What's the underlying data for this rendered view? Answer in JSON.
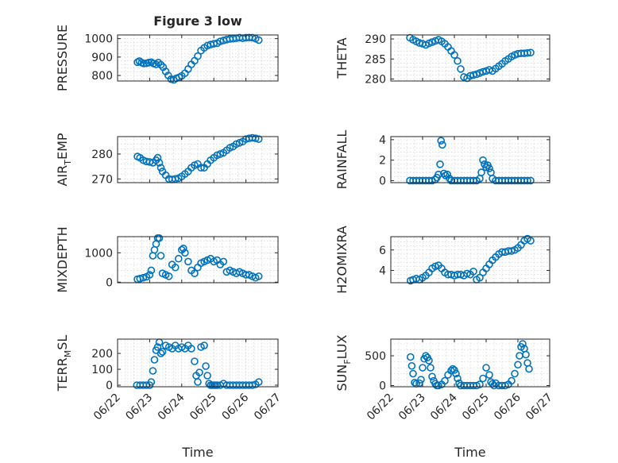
{
  "figure": {
    "title": "Figure 3 low"
  },
  "colors": {
    "marker": "#0072BD",
    "axis": "#262626",
    "grid": "#c8c8c8"
  },
  "chart_data": [
    {
      "type": "scatter",
      "id": "pressure",
      "title": "Figure 3 low",
      "ylabel": "PRESSURE",
      "ylabel_sub": "",
      "ylabel_tail": "",
      "xlim": [
        0,
        5
      ],
      "ylim": [
        770,
        1020
      ],
      "yticks": [
        800,
        900,
        1000
      ],
      "xticks": [
        0,
        1,
        2,
        3,
        4,
        5
      ],
      "xticklabels": [
        "06/22",
        "06/23",
        "06/24",
        "06/25",
        "06/26",
        "06/27"
      ],
      "show_xticklabels": false,
      "xlabel": "",
      "x": [
        0.62,
        0.68,
        0.75,
        0.82,
        0.9,
        0.97,
        1.05,
        1.12,
        1.2,
        1.27,
        1.35,
        1.42,
        1.5,
        1.58,
        1.67,
        1.75,
        1.83,
        1.92,
        2.0,
        2.1,
        2.2,
        2.3,
        2.4,
        2.5,
        2.6,
        2.7,
        2.8,
        2.9,
        3.0,
        3.1,
        3.2,
        3.3,
        3.4,
        3.5,
        3.6,
        3.7,
        3.8,
        3.9,
        4.0,
        4.1,
        4.2,
        4.3,
        4.4
      ],
      "y": [
        872,
        878,
        870,
        865,
        866,
        870,
        872,
        865,
        860,
        870,
        858,
        845,
        822,
        800,
        780,
        776,
        785,
        790,
        798,
        812,
        835,
        860,
        880,
        905,
        935,
        950,
        962,
        968,
        972,
        975,
        985,
        990,
        995,
        998,
        1000,
        1002,
        1005,
        1002,
        1005,
        1006,
        1005,
        1000,
        992
      ]
    },
    {
      "type": "scatter",
      "id": "theta",
      "title": "",
      "ylabel": "THETA",
      "ylabel_sub": "",
      "ylabel_tail": "",
      "xlim": [
        0,
        5
      ],
      "ylim": [
        279.5,
        291
      ],
      "yticks": [
        280,
        285,
        290
      ],
      "xticks": [
        0,
        1,
        2,
        3,
        4,
        5
      ],
      "xticklabels": [
        "06/22",
        "06/23",
        "06/24",
        "06/25",
        "06/26",
        "06/27"
      ],
      "show_xticklabels": false,
      "xlabel": "",
      "x": [
        0.6,
        0.7,
        0.8,
        0.9,
        1.0,
        1.1,
        1.2,
        1.3,
        1.4,
        1.5,
        1.6,
        1.7,
        1.8,
        1.9,
        2.0,
        2.1,
        2.2,
        2.3,
        2.4,
        2.5,
        2.6,
        2.7,
        2.8,
        2.9,
        3.0,
        3.1,
        3.2,
        3.3,
        3.4,
        3.5,
        3.6,
        3.7,
        3.8,
        3.9,
        4.0,
        4.1,
        4.2,
        4.3,
        4.4
      ],
      "y": [
        290.3,
        289.8,
        289.4,
        289.0,
        288.8,
        288.5,
        288.9,
        289.2,
        289.5,
        289.8,
        289.4,
        288.8,
        288.0,
        287.0,
        286.0,
        284.5,
        282.5,
        280.5,
        280.2,
        280.8,
        281.0,
        281.2,
        281.5,
        281.8,
        282.0,
        282.3,
        282.0,
        282.6,
        283.2,
        283.8,
        284.5,
        285.0,
        285.6,
        286.0,
        286.3,
        286.4,
        286.4,
        286.5,
        286.6
      ]
    },
    {
      "type": "scatter",
      "id": "airtemp",
      "title": "",
      "ylabel": "AIR",
      "ylabel_sub": "T",
      "ylabel_tail": "EMP",
      "xlim": [
        0,
        5
      ],
      "ylim": [
        268.5,
        287
      ],
      "yticks": [
        270,
        280
      ],
      "xticks": [
        0,
        1,
        2,
        3,
        4,
        5
      ],
      "xticklabels": [
        "06/22",
        "06/23",
        "06/24",
        "06/25",
        "06/26",
        "06/27"
      ],
      "show_xticklabels": false,
      "xlabel": "",
      "x": [
        0.62,
        0.7,
        0.8,
        0.9,
        1.0,
        1.1,
        1.2,
        1.25,
        1.3,
        1.35,
        1.4,
        1.5,
        1.6,
        1.7,
        1.8,
        1.9,
        2.0,
        2.1,
        2.2,
        2.3,
        2.4,
        2.5,
        2.6,
        2.7,
        2.8,
        2.9,
        3.0,
        3.1,
        3.2,
        3.3,
        3.4,
        3.5,
        3.6,
        3.7,
        3.8,
        3.9,
        4.0,
        4.1,
        4.2,
        4.3,
        4.4
      ],
      "y": [
        279,
        278.5,
        277.5,
        277,
        276.8,
        276.5,
        277.5,
        278.5,
        276.5,
        274.5,
        273,
        271.5,
        270,
        269.8,
        270,
        270.3,
        271,
        272,
        273,
        274.5,
        275.5,
        276,
        274.5,
        274.5,
        276,
        277.5,
        278.5,
        279.5,
        280,
        280.5,
        281.5,
        282.5,
        283,
        284,
        284.5,
        285,
        286,
        286.3,
        286.5,
        286.3,
        286
      ]
    },
    {
      "type": "scatter",
      "id": "rainfall",
      "title": "",
      "ylabel": "RAINFALL",
      "ylabel_sub": "",
      "ylabel_tail": "",
      "xlim": [
        0,
        5
      ],
      "ylim": [
        -0.2,
        4.3
      ],
      "yticks": [
        0,
        2,
        4
      ],
      "xticks": [
        0,
        1,
        2,
        3,
        4,
        5
      ],
      "xticklabels": [
        "06/22",
        "06/23",
        "06/24",
        "06/25",
        "06/26",
        "06/27"
      ],
      "show_xticklabels": false,
      "xlabel": "",
      "x": [
        0.6,
        0.7,
        0.8,
        0.9,
        1.0,
        1.1,
        1.2,
        1.3,
        1.4,
        1.45,
        1.5,
        1.55,
        1.58,
        1.62,
        1.67,
        1.72,
        1.78,
        1.85,
        1.9,
        2.0,
        2.1,
        2.2,
        2.3,
        2.4,
        2.5,
        2.6,
        2.7,
        2.8,
        2.85,
        2.9,
        2.95,
        3.0,
        3.05,
        3.1,
        3.15,
        3.2,
        3.3,
        3.4,
        3.5,
        3.6,
        3.7,
        3.8,
        3.9,
        4.0,
        4.1,
        4.2,
        4.3,
        4.4
      ],
      "y": [
        0,
        0,
        0,
        0,
        0,
        0,
        0,
        0,
        0.1,
        0.3,
        0.6,
        1.6,
        3.9,
        3.5,
        0.7,
        0.5,
        0.6,
        0.2,
        0,
        0,
        0,
        0,
        0,
        0,
        0,
        0,
        0,
        0.2,
        0.8,
        2.0,
        1.6,
        1.3,
        1.5,
        1.2,
        0.8,
        0.2,
        0,
        0,
        0,
        0,
        0,
        0,
        0,
        0,
        0,
        0,
        0,
        0
      ]
    },
    {
      "type": "scatter",
      "id": "mixdepth",
      "title": "",
      "ylabel": "MIXDEPTH",
      "ylabel_sub": "",
      "ylabel_tail": "",
      "xlim": [
        0,
        5
      ],
      "ylim": [
        -20,
        1550
      ],
      "yticks": [
        0,
        1000
      ],
      "xticks": [
        0,
        1,
        2,
        3,
        4,
        5
      ],
      "xticklabels": [
        "06/22",
        "06/23",
        "06/24",
        "06/25",
        "06/26",
        "06/27"
      ],
      "show_xticklabels": false,
      "xlabel": "",
      "x": [
        0.62,
        0.7,
        0.8,
        0.9,
        1.0,
        1.05,
        1.1,
        1.15,
        1.2,
        1.25,
        1.3,
        1.35,
        1.4,
        1.5,
        1.6,
        1.7,
        1.8,
        1.9,
        2.0,
        2.05,
        2.1,
        2.2,
        2.3,
        2.4,
        2.5,
        2.6,
        2.7,
        2.8,
        2.9,
        3.0,
        3.1,
        3.2,
        3.3,
        3.4,
        3.5,
        3.6,
        3.7,
        3.8,
        3.9,
        4.0,
        4.1,
        4.2,
        4.3,
        4.4
      ],
      "y": [
        100,
        120,
        150,
        180,
        250,
        400,
        900,
        1100,
        1300,
        1500,
        1500,
        900,
        300,
        250,
        200,
        600,
        500,
        800,
        1100,
        1150,
        1000,
        700,
        400,
        300,
        500,
        650,
        700,
        750,
        800,
        700,
        750,
        600,
        700,
        350,
        400,
        350,
        300,
        350,
        300,
        250,
        250,
        200,
        150,
        200
      ]
    },
    {
      "type": "scatter",
      "id": "h2omixra",
      "title": "",
      "ylabel": "H2OMIXRA",
      "ylabel_sub": "",
      "ylabel_tail": "",
      "xlim": [
        0,
        5
      ],
      "ylim": [
        2.8,
        7.3
      ],
      "yticks": [
        4,
        6
      ],
      "xticks": [
        0,
        1,
        2,
        3,
        4,
        5
      ],
      "xticklabels": [
        "06/22",
        "06/23",
        "06/24",
        "06/25",
        "06/26",
        "06/27"
      ],
      "show_xticklabels": false,
      "xlabel": "",
      "x": [
        0.62,
        0.7,
        0.8,
        0.9,
        1.0,
        1.1,
        1.2,
        1.3,
        1.4,
        1.5,
        1.6,
        1.7,
        1.8,
        1.9,
        2.0,
        2.1,
        2.2,
        2.3,
        2.4,
        2.5,
        2.6,
        2.7,
        2.8,
        2.9,
        3.0,
        3.1,
        3.2,
        3.3,
        3.4,
        3.5,
        3.6,
        3.7,
        3.8,
        3.9,
        4.0,
        4.1,
        4.2,
        4.3,
        4.4
      ],
      "y": [
        3.0,
        3.1,
        3.2,
        3.1,
        3.3,
        3.5,
        3.8,
        4.2,
        4.4,
        4.5,
        4.2,
        3.8,
        3.6,
        3.6,
        3.5,
        3.6,
        3.6,
        3.5,
        3.7,
        3.6,
        3.9,
        3.1,
        3.3,
        3.8,
        4.2,
        4.6,
        5.0,
        5.3,
        5.6,
        5.8,
        5.8,
        5.9,
        5.9,
        6.0,
        6.2,
        6.5,
        6.9,
        7.1,
        6.9
      ]
    },
    {
      "type": "scatter",
      "id": "terrmsl",
      "title": "",
      "ylabel": "TERR",
      "ylabel_sub": "M",
      "ylabel_tail": "SL",
      "xlim": [
        0,
        5
      ],
      "ylim": [
        -10,
        290
      ],
      "yticks": [
        0,
        100,
        200
      ],
      "xticks": [
        0,
        1,
        2,
        3,
        4,
        5
      ],
      "xticklabels": [
        "06/22",
        "06/23",
        "06/24",
        "06/25",
        "06/26",
        "06/27"
      ],
      "show_xticklabels": true,
      "xlabel": "Time",
      "x": [
        0.6,
        0.7,
        0.8,
        0.9,
        1.0,
        1.05,
        1.1,
        1.15,
        1.2,
        1.25,
        1.3,
        1.35,
        1.4,
        1.5,
        1.6,
        1.7,
        1.8,
        1.9,
        2.0,
        2.1,
        2.2,
        2.3,
        2.4,
        2.45,
        2.5,
        2.55,
        2.6,
        2.7,
        2.75,
        2.8,
        2.85,
        2.9,
        2.95,
        3.0,
        3.05,
        3.1,
        3.2,
        3.3,
        3.4,
        3.5,
        3.6,
        3.7,
        3.8,
        3.9,
        4.0,
        4.1,
        4.2,
        4.3,
        4.4
      ],
      "y": [
        0,
        0,
        0,
        0,
        0,
        20,
        90,
        160,
        220,
        240,
        270,
        200,
        210,
        250,
        240,
        230,
        250,
        230,
        240,
        230,
        250,
        230,
        150,
        60,
        20,
        80,
        240,
        250,
        120,
        60,
        10,
        0,
        0,
        0,
        0,
        0,
        0,
        10,
        0,
        0,
        0,
        0,
        0,
        0,
        0,
        0,
        0,
        5,
        20
      ]
    },
    {
      "type": "scatter",
      "id": "sunflux",
      "title": "",
      "ylabel": "SUN",
      "ylabel_sub": "F",
      "ylabel_tail": "LUX",
      "xlim": [
        0,
        5
      ],
      "ylim": [
        -20,
        780
      ],
      "yticks": [
        0,
        500
      ],
      "xticks": [
        0,
        1,
        2,
        3,
        4,
        5
      ],
      "xticklabels": [
        "06/22",
        "06/23",
        "06/24",
        "06/25",
        "06/26",
        "06/27"
      ],
      "show_xticklabels": true,
      "xlabel": "Time",
      "x": [
        0.62,
        0.66,
        0.7,
        0.75,
        0.8,
        0.9,
        0.95,
        1.0,
        1.05,
        1.1,
        1.15,
        1.2,
        1.25,
        1.3,
        1.35,
        1.4,
        1.45,
        1.5,
        1.6,
        1.7,
        1.8,
        1.9,
        1.95,
        2.0,
        2.05,
        2.1,
        2.15,
        2.2,
        2.3,
        2.4,
        2.5,
        2.6,
        2.7,
        2.8,
        2.9,
        3.0,
        3.1,
        3.15,
        3.2,
        3.25,
        3.3,
        3.4,
        3.5,
        3.6,
        3.7,
        3.8,
        3.9,
        4.0,
        4.05,
        4.1,
        4.15,
        4.2,
        4.25,
        4.3,
        4.35
      ],
      "y": [
        480,
        330,
        200,
        50,
        30,
        40,
        100,
        300,
        450,
        500,
        470,
        420,
        300,
        150,
        80,
        30,
        0,
        0,
        20,
        80,
        180,
        250,
        280,
        260,
        200,
        120,
        40,
        0,
        0,
        0,
        0,
        0,
        0,
        20,
        120,
        300,
        180,
        60,
        30,
        0,
        40,
        0,
        0,
        0,
        20,
        80,
        200,
        350,
        500,
        650,
        700,
        620,
        520,
        380,
        280
      ]
    }
  ]
}
